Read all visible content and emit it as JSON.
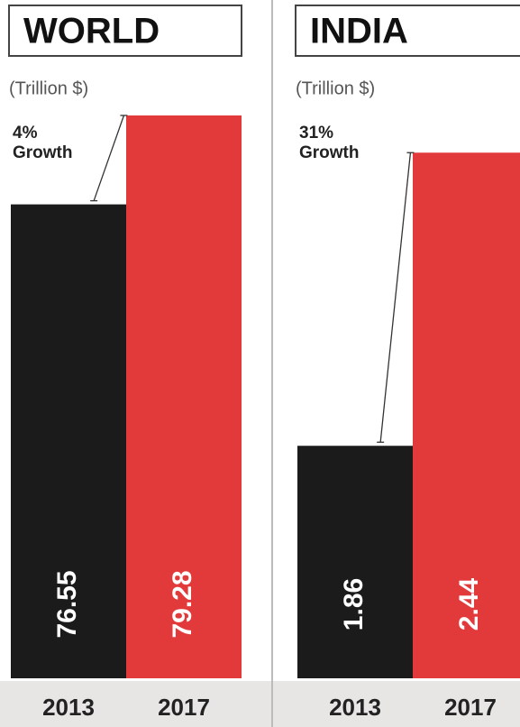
{
  "chart_data": [
    {
      "type": "bar",
      "title": "WORLD",
      "subtitle": "(Trillion $)",
      "annotation": [
        "4%",
        "Growth"
      ],
      "categories": [
        "2013",
        "2017"
      ],
      "values": [
        76.55,
        79.28
      ],
      "colors": [
        "#1b1b1b",
        "#e23a3a"
      ],
      "ylim": [
        62,
        80
      ]
    },
    {
      "type": "bar",
      "title": "INDIA",
      "subtitle": "(Trillion $)",
      "annotation": [
        "31%",
        "Growth"
      ],
      "categories": [
        "2013",
        "2017"
      ],
      "values": [
        1.86,
        2.44
      ],
      "colors": [
        "#1b1b1b",
        "#e23a3a"
      ],
      "ylim": [
        1.4,
        2.56
      ]
    }
  ]
}
